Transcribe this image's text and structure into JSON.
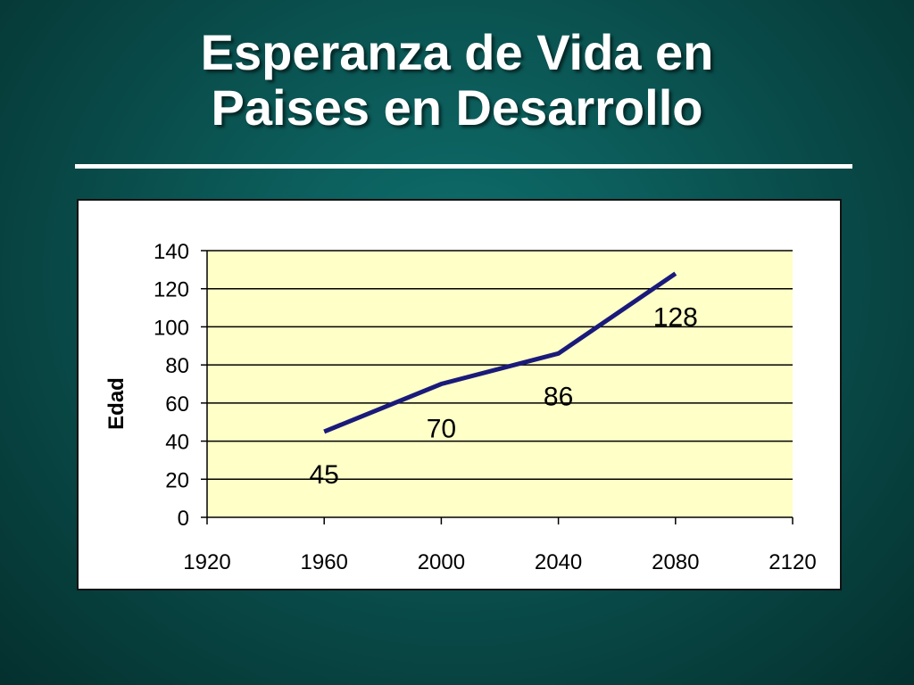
{
  "slide": {
    "title_line_1": "Esperanza de Vida en",
    "title_line_2": "Paises en Desarrollo"
  },
  "colors": {
    "background": "#0b5a58",
    "title": "#ffffff",
    "plot_area": "#ffffc8",
    "series_line": "#1a1a7a"
  },
  "chart_data": {
    "type": "line",
    "title": "",
    "xlabel": "",
    "ylabel": "Edad",
    "xlim": [
      1920,
      2120
    ],
    "ylim": [
      0,
      140
    ],
    "x_ticks": [
      1920,
      1960,
      2000,
      2040,
      2080,
      2120
    ],
    "y_ticks": [
      0,
      20,
      40,
      60,
      80,
      100,
      120,
      140
    ],
    "grid": "horizontal",
    "legend": "none",
    "series": [
      {
        "x": [
          1960,
          2000,
          2040,
          2080
        ],
        "values": [
          45,
          70,
          86,
          128
        ],
        "data_labels": [
          "45",
          "70",
          "86",
          "128"
        ]
      }
    ]
  }
}
